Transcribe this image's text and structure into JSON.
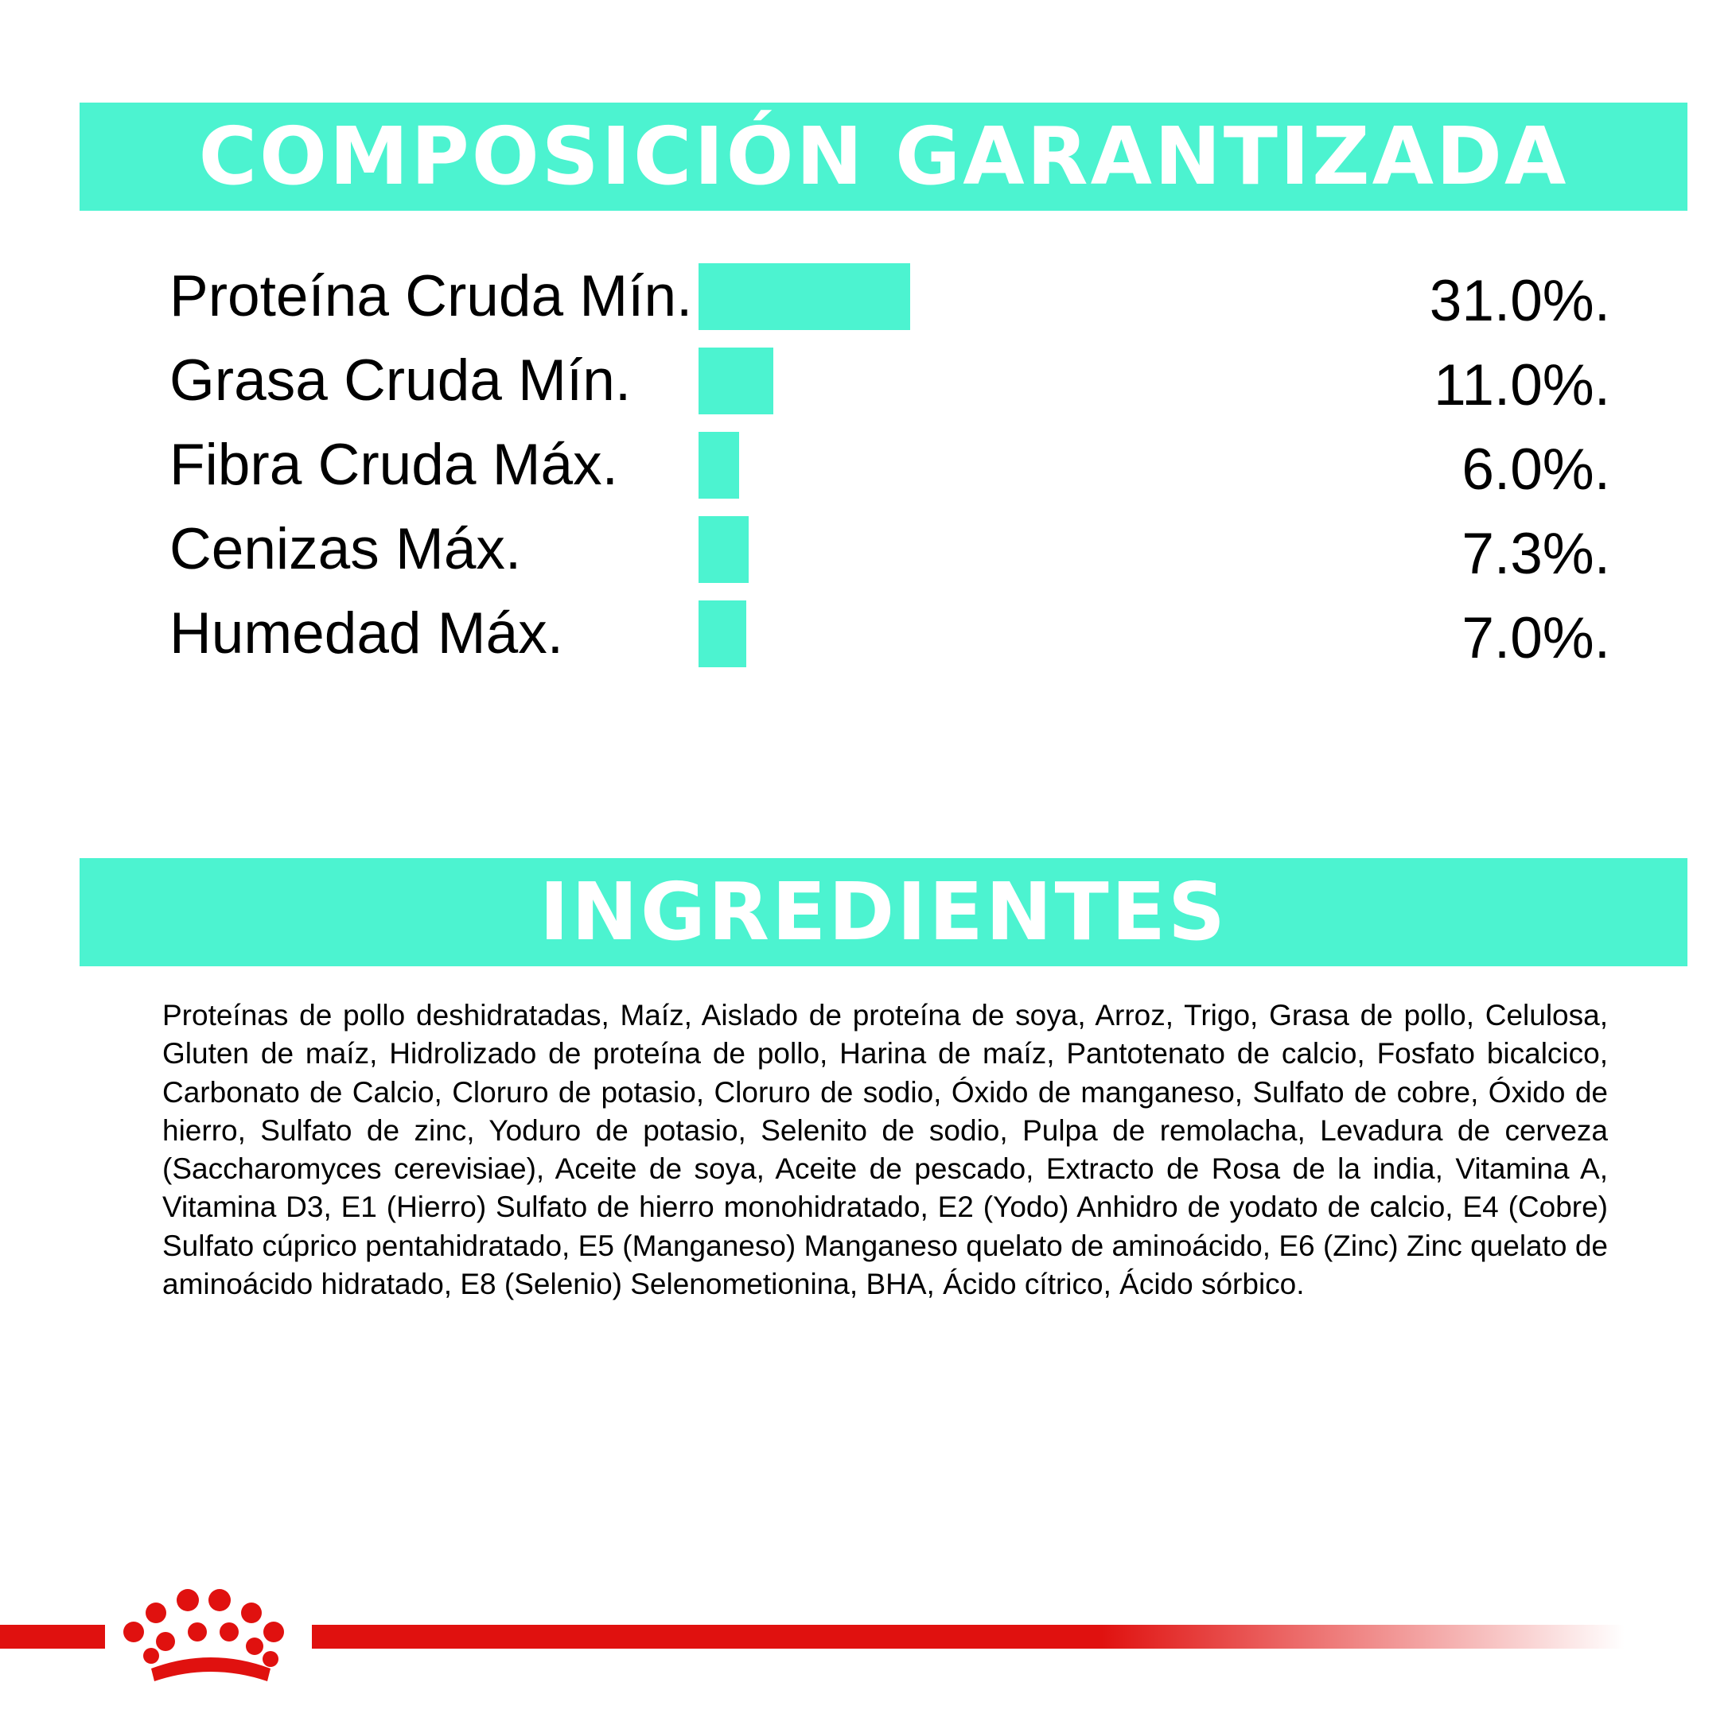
{
  "colors": {
    "accent": "#4cf3d0",
    "brand_red": "#e0110f",
    "text": "#000000",
    "banner_text": "#ffffff"
  },
  "composition_banner": {
    "title": "COMPOSICIÓN GARANTIZADA"
  },
  "ingredients_banner": {
    "title": "INGREDIENTES"
  },
  "chart_data": {
    "type": "bar",
    "orientation": "horizontal",
    "title": "COMPOSICIÓN GARANTIZADA",
    "categories": [
      "Proteína Cruda Mín.",
      "Grasa Cruda Mín.",
      "Fibra Cruda Máx.",
      "Cenizas Máx.",
      "Humedad Máx."
    ],
    "values": [
      31.0,
      11.0,
      6.0,
      7.3,
      7.0
    ],
    "value_labels": [
      "31.0%.",
      "11.0%.",
      "6.0%.",
      "7.3%.",
      "7.0%."
    ],
    "unit": "%",
    "xlim": [
      0,
      31.0
    ],
    "grid": false,
    "legend": "none"
  },
  "ingredients": {
    "text": "Proteínas de pollo deshidratadas, Maíz, Aislado de proteína de soya, Arroz, Trigo, Grasa de pollo, Celulosa, Gluten de maíz, Hidrolizado de proteína de pollo, Harina de maíz, Pantotenato de calcio, Fosfato bicalcico, Carbonato de Calcio, Cloruro de potasio, Cloruro de sodio, Óxido de manganeso, Sulfato de cobre, Óxido de hierro, Sulfato de zinc, Yoduro de potasio, Selenito de sodio, Pulpa de remolacha, Levadura de cerveza (Saccharomyces cerevisiae), Aceite de soya, Aceite de pescado, Extracto de Rosa de la india, Vitamina A, Vitamina D3, E1 (Hierro) Sulfato de hierro monohidratado, E2 (Yodo) Anhidro de yodato de calcio, E4 (Cobre) Sulfato cúprico pentahidratado, E5 (Manganeso) Manganeso quelato de aminoácido, E6 (Zinc) Zinc quelato de aminoácido hidratado, E8 (Selenio) Selenometionina, BHA, Ácido cítrico, Ácido sórbico."
  },
  "footer": {
    "logo": "royal-crown-icon"
  }
}
